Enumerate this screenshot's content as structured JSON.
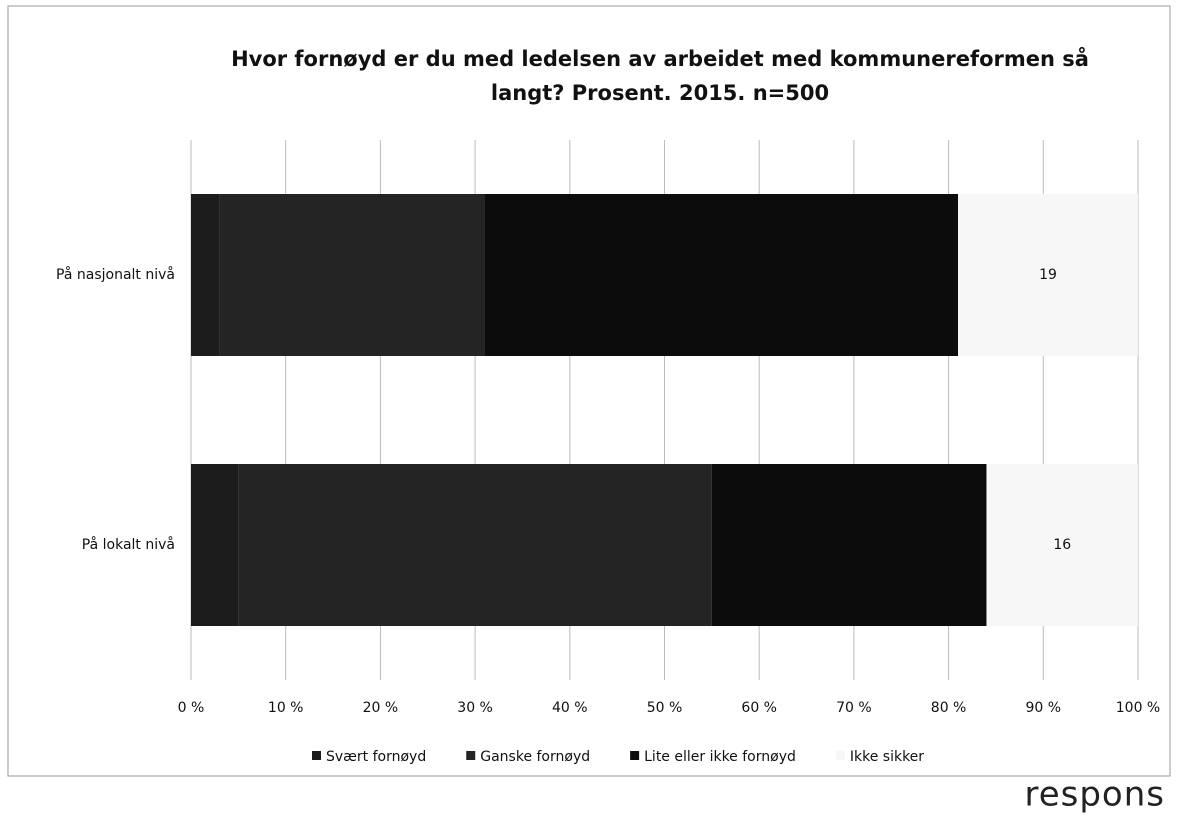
{
  "chart_data": {
    "type": "stacked_barh",
    "title": [
      "Hvor fornøyd er du med ledelsen av arbeidet med kommunereformen så",
      "langt? Prosent. 2015.  n=500"
    ],
    "categories": [
      "På nasjonalt nivå",
      "På lokalt nivå"
    ],
    "series": [
      {
        "name": "Svært fornøyd",
        "color": "#1c1c1c",
        "values": [
          3,
          5
        ],
        "show_labels": false
      },
      {
        "name": "Ganske fornøyd",
        "color": "#242424",
        "values": [
          28,
          50
        ],
        "show_labels": false
      },
      {
        "name": "Lite eller ikke fornøyd",
        "color": "#0c0c0c",
        "values": [
          50,
          29
        ],
        "show_labels": false
      },
      {
        "name": "Ikke sikker",
        "color": "#f7f7f7",
        "values": [
          19,
          16
        ],
        "show_labels": true
      }
    ],
    "xlim": [
      0,
      100
    ],
    "xticks": [
      {
        "value": 0,
        "label": "0 %"
      },
      {
        "value": 10,
        "label": "10 %"
      },
      {
        "value": 20,
        "label": "20 %"
      },
      {
        "value": 30,
        "label": "30 %"
      },
      {
        "value": 40,
        "label": "40 %"
      },
      {
        "value": 50,
        "label": "50 %"
      },
      {
        "value": 60,
        "label": "60 %"
      },
      {
        "value": 70,
        "label": "70 %"
      },
      {
        "value": 80,
        "label": "80 %"
      },
      {
        "value": 90,
        "label": "90 %"
      },
      {
        "value": 100,
        "label": "100 %"
      }
    ],
    "grid": true,
    "legend": "bottom",
    "logo": "respons"
  }
}
